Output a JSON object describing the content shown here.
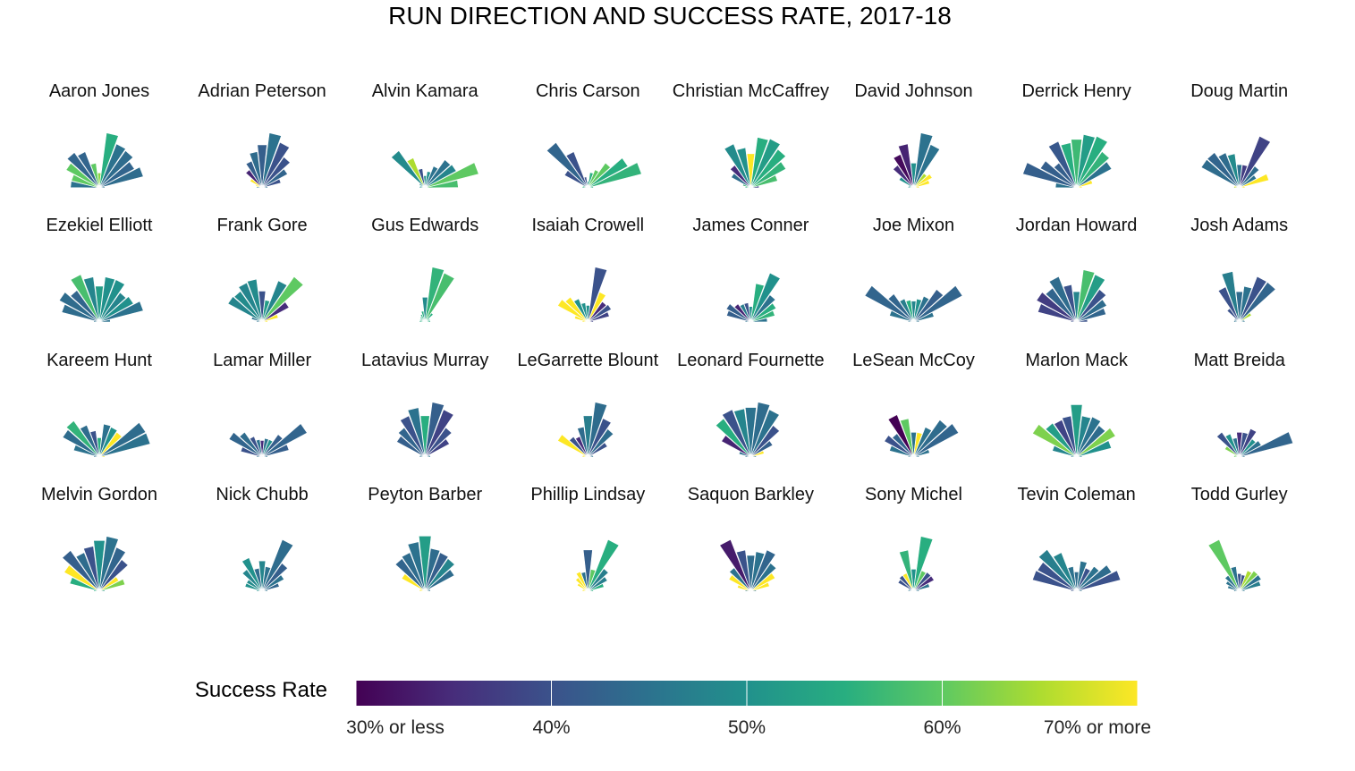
{
  "chart_data": {
    "type": "polar-bar-small-multiples",
    "title": "RUN DIRECTION AND SUCCESS RATE, 2017-18",
    "directions": 13,
    "direction_range_degrees": [
      -90,
      90
    ],
    "value_note": "bar length = relative share of runs in that direction; color = success rate",
    "players": [
      {
        "name": "Aaron Jones",
        "values": [
          0.52,
          0.52,
          0.68,
          0.78,
          0.7,
          0.45,
          0.27,
          1.0,
          0.85,
          0.82,
          0.72,
          0.82,
          0.1
        ],
        "rates": [
          45,
          60,
          60,
          43,
          43,
          60,
          63,
          55,
          45,
          44,
          43,
          44,
          45
        ]
      },
      {
        "name": "Adrian Peterson",
        "values": [
          0.1,
          0.12,
          0.25,
          0.4,
          0.52,
          0.66,
          0.78,
          1.0,
          0.88,
          0.68,
          0.52,
          0.35,
          0.1
        ],
        "rates": [
          45,
          72,
          72,
          34,
          42,
          44,
          42,
          45,
          40,
          40,
          43,
          40,
          45
        ]
      },
      {
        "name": "Alvin Kamara",
        "values": [
          0.1,
          0.1,
          0.12,
          0.82,
          0.58,
          0.35,
          0.22,
          0.3,
          0.42,
          0.62,
          0.64,
          1.0,
          0.6
        ],
        "rates": [
          50,
          50,
          50,
          49,
          65,
          40,
          50,
          50,
          45,
          45,
          48,
          60,
          58
        ]
      },
      {
        "name": "Chris Carson",
        "values": [
          0.1,
          0.1,
          0.48,
          1.0,
          0.7,
          0.2,
          0.12,
          0.28,
          0.35,
          0.55,
          0.82,
          1.0,
          0.1
        ],
        "rates": [
          55,
          55,
          40,
          43,
          40,
          40,
          50,
          55,
          60,
          60,
          55,
          56,
          55
        ]
      },
      {
        "name": "Christian McCaffrey",
        "values": [
          0.1,
          0.15,
          0.4,
          0.5,
          0.85,
          0.73,
          0.62,
          0.92,
          0.95,
          0.85,
          0.72,
          0.5,
          0.15
        ],
        "rates": [
          55,
          57,
          44,
          35,
          49,
          50,
          72,
          55,
          52,
          55,
          56,
          58,
          38
        ]
      },
      {
        "name": "David Johnson",
        "values": [
          0.1,
          0.1,
          0.3,
          0.5,
          0.65,
          0.8,
          0.45,
          1.0,
          0.84,
          0.32,
          0.38,
          0.3,
          0.1
        ],
        "rates": [
          50,
          50,
          50,
          35,
          31,
          34,
          50,
          45,
          45,
          65,
          72,
          72,
          72
        ]
      },
      {
        "name": "Derrick Henry",
        "values": [
          0.38,
          1.0,
          0.74,
          0.55,
          0.9,
          0.82,
          0.88,
          0.97,
          1.0,
          0.8,
          0.72,
          0.3,
          0.1
        ],
        "rates": [
          45,
          42,
          42,
          42,
          41,
          55,
          57,
          52,
          55,
          56,
          45,
          72,
          72
        ]
      },
      {
        "name": "Doug Martin",
        "values": [
          0.1,
          0.1,
          0.78,
          0.78,
          0.68,
          0.62,
          0.42,
          0.42,
          1.0,
          0.48,
          0.35,
          0.55,
          0.1
        ],
        "rates": [
          65,
          72,
          44,
          43,
          44,
          49,
          45,
          37,
          38,
          44,
          45,
          72,
          72
        ]
      },
      {
        "name": "Ezekiel Elliott",
        "values": [
          0.1,
          0.7,
          0.82,
          0.7,
          0.92,
          0.82,
          0.65,
          0.82,
          0.82,
          0.65,
          0.7,
          0.82,
          0.2
        ],
        "rates": [
          45,
          44,
          44,
          43,
          58,
          48,
          52,
          50,
          50,
          48,
          50,
          45,
          45
        ]
      },
      {
        "name": "Frank Gore",
        "values": [
          0.1,
          0.2,
          0.7,
          0.68,
          0.76,
          0.78,
          0.56,
          0.4,
          0.8,
          1.0,
          0.55,
          0.3,
          0.1
        ],
        "rates": [
          45,
          45,
          48,
          49,
          48,
          49,
          40,
          52,
          48,
          60,
          35,
          72,
          72
        ]
      },
      {
        "name": "Gus Edwards",
        "values": [
          0.1,
          0.1,
          0.1,
          0.12,
          0.15,
          0.2,
          0.45,
          1.0,
          0.95,
          0.2,
          0.1,
          0.1,
          0.1
        ],
        "rates": [
          55,
          55,
          55,
          55,
          55,
          55,
          49,
          56,
          58,
          55,
          55,
          55,
          55
        ]
      },
      {
        "name": "Isaiah Crowell",
        "values": [
          0.1,
          0.25,
          0.62,
          0.55,
          0.45,
          0.35,
          0.3,
          1.0,
          0.58,
          0.45,
          0.48,
          0.4,
          0.1
        ],
        "rates": [
          72,
          72,
          72,
          74,
          50,
          50,
          50,
          40,
          72,
          35,
          40,
          38,
          38
        ]
      },
      {
        "name": "James Conner",
        "values": [
          0.1,
          0.45,
          0.5,
          0.4,
          0.35,
          0.35,
          0.28,
          0.7,
          0.95,
          0.6,
          0.52,
          0.45,
          0.3
        ],
        "rates": [
          45,
          42,
          42,
          34,
          47,
          40,
          50,
          55,
          50,
          45,
          55,
          56,
          45
        ]
      },
      {
        "name": "Joe Mixon",
        "values": [
          0.1,
          0.45,
          1.0,
          0.62,
          0.45,
          0.4,
          0.38,
          0.42,
          0.5,
          0.72,
          1.0,
          0.38,
          0.1
        ],
        "rates": [
          45,
          45,
          43,
          43,
          47,
          55,
          48,
          50,
          45,
          42,
          43,
          45,
          45
        ]
      },
      {
        "name": "Jordan Howard",
        "values": [
          0.1,
          0.72,
          0.82,
          0.75,
          0.88,
          0.68,
          0.55,
          0.95,
          0.92,
          0.72,
          0.62,
          0.55,
          0.2
        ],
        "rates": [
          40,
          38,
          37,
          43,
          44,
          40,
          48,
          58,
          52,
          40,
          44,
          43,
          40
        ]
      },
      {
        "name": "Josh Adams",
        "values": [
          0.1,
          0.1,
          0.1,
          0.3,
          0.68,
          0.92,
          0.55,
          0.65,
          0.88,
          0.88,
          0.25,
          0.1,
          0.1
        ],
        "rates": [
          45,
          45,
          45,
          40,
          40,
          47,
          44,
          45,
          40,
          43,
          65,
          45,
          45
        ]
      },
      {
        "name": "Kareem Hunt",
        "values": [
          0.1,
          0.48,
          0.75,
          0.8,
          0.62,
          0.48,
          0.35,
          0.6,
          0.58,
          0.55,
          0.95,
          0.95,
          0.1
        ],
        "rates": [
          45,
          45,
          44,
          56,
          44,
          40,
          55,
          45,
          50,
          72,
          44,
          45,
          72
        ]
      },
      {
        "name": "Lamar Miller",
        "values": [
          0.1,
          0.4,
          0.68,
          0.55,
          0.4,
          0.32,
          0.3,
          0.34,
          0.34,
          0.5,
          0.92,
          0.5,
          0.1
        ],
        "rates": [
          45,
          40,
          43,
          44,
          40,
          45,
          35,
          45,
          50,
          42,
          43,
          42,
          45
        ]
      },
      {
        "name": "Latavius Murray",
        "values": [
          0.1,
          0.1,
          0.58,
          0.65,
          0.8,
          0.9,
          0.75,
          1.0,
          0.92,
          0.65,
          0.5,
          0.1,
          0.1
        ],
        "rates": [
          45,
          45,
          42,
          43,
          40,
          45,
          55,
          42,
          38,
          40,
          38,
          45,
          45
        ]
      },
      {
        "name": "LeGarrette Blount",
        "values": [
          0.1,
          0.1,
          0.62,
          0.45,
          0.4,
          0.55,
          0.75,
          1.0,
          0.75,
          0.62,
          0.4,
          0.1,
          0.1
        ],
        "rates": [
          72,
          72,
          72,
          40,
          35,
          44,
          47,
          44,
          40,
          44,
          40,
          45,
          45
        ]
      },
      {
        "name": "Leonard Fournette",
        "values": [
          0.1,
          0.22,
          0.6,
          0.85,
          0.92,
          0.88,
          0.9,
          1.0,
          0.92,
          0.7,
          0.45,
          0.25,
          0.1
        ],
        "rates": [
          45,
          45,
          34,
          55,
          40,
          48,
          45,
          44,
          45,
          40,
          42,
          72,
          45
        ]
      },
      {
        "name": "LeSean McCoy",
        "values": [
          0.1,
          0.45,
          0.6,
          0.52,
          0.82,
          0.7,
          0.45,
          0.45,
          0.58,
          0.82,
          0.92,
          0.3,
          0.1
        ],
        "rates": [
          45,
          45,
          40,
          43,
          30,
          60,
          45,
          72,
          45,
          44,
          43,
          45,
          45
        ]
      },
      {
        "name": "Marlon Mack",
        "values": [
          0.1,
          0.45,
          0.9,
          0.75,
          0.72,
          0.75,
          0.95,
          0.75,
          0.78,
          0.7,
          0.8,
          0.65,
          0.1
        ],
        "rates": [
          48,
          48,
          62,
          52,
          38,
          40,
          52,
          48,
          45,
          44,
          62,
          50,
          48
        ]
      },
      {
        "name": "Matt Breida",
        "values": [
          0.1,
          0.1,
          0.3,
          0.55,
          0.45,
          0.35,
          0.45,
          0.45,
          0.55,
          0.4,
          0.45,
          1.0,
          0.1
        ],
        "rates": [
          60,
          62,
          62,
          40,
          50,
          45,
          35,
          40,
          38,
          50,
          45,
          43,
          45
        ]
      },
      {
        "name": "Melvin Gordon",
        "values": [
          0.1,
          0.55,
          0.72,
          0.9,
          0.75,
          0.82,
          0.92,
          1.0,
          0.85,
          0.7,
          0.4,
          0.48,
          0.1
        ],
        "rates": [
          55,
          55,
          72,
          42,
          44,
          40,
          50,
          45,
          43,
          40,
          72,
          62,
          50
        ]
      },
      {
        "name": "Nick Chubb",
        "values": [
          0.1,
          0.32,
          0.32,
          0.48,
          0.65,
          0.42,
          0.55,
          0.45,
          1.0,
          0.62,
          0.45,
          0.32,
          0.1
        ],
        "rates": [
          50,
          50,
          49,
          48,
          50,
          44,
          48,
          45,
          44,
          42,
          45,
          43,
          45
        ]
      },
      {
        "name": "Peyton Barber",
        "values": [
          0.1,
          0.1,
          0.48,
          0.72,
          0.75,
          0.9,
          1.0,
          0.78,
          0.75,
          0.72,
          0.6,
          0.1,
          0.1
        ],
        "rates": [
          72,
          72,
          72,
          43,
          44,
          45,
          52,
          44,
          42,
          48,
          44,
          45,
          45
        ]
      },
      {
        "name": "Phillip Lindsay",
        "values": [
          0.1,
          0.1,
          0.22,
          0.3,
          0.38,
          0.35,
          0.75,
          0.4,
          1.0,
          0.5,
          0.4,
          0.3,
          0.1
        ],
        "rates": [
          72,
          72,
          72,
          72,
          72,
          45,
          42,
          60,
          55,
          47,
          47,
          55,
          55
        ]
      },
      {
        "name": "Saquon Barkley",
        "values": [
          0.1,
          0.25,
          0.45,
          0.52,
          1.0,
          0.75,
          0.65,
          0.72,
          0.8,
          0.62,
          0.5,
          0.35,
          0.1
        ],
        "rates": [
          45,
          72,
          72,
          45,
          33,
          40,
          44,
          45,
          43,
          45,
          72,
          72,
          45
        ]
      },
      {
        "name": "Sony Michel",
        "values": [
          0.1,
          0.1,
          0.32,
          0.35,
          0.35,
          0.75,
          0.4,
          1.0,
          0.4,
          0.42,
          0.42,
          0.3,
          0.1
        ],
        "rates": [
          45,
          45,
          40,
          40,
          72,
          56,
          50,
          55,
          60,
          40,
          35,
          45,
          45
        ]
      },
      {
        "name": "Tevin Coleman",
        "values": [
          0.1,
          0.82,
          0.8,
          0.92,
          0.75,
          0.45,
          0.35,
          0.55,
          0.45,
          0.55,
          0.72,
          0.82,
          0.1
        ],
        "rates": [
          40,
          40,
          40,
          47,
          48,
          45,
          44,
          45,
          40,
          45,
          44,
          40,
          45
        ]
      },
      {
        "name": "Todd Gurley",
        "values": [
          0.1,
          0.22,
          0.28,
          0.35,
          1.0,
          0.45,
          0.32,
          0.3,
          0.4,
          0.45,
          0.45,
          0.4,
          0.1
        ],
        "rates": [
          45,
          45,
          45,
          45,
          60,
          45,
          40,
          40,
          65,
          62,
          45,
          47,
          45
        ]
      }
    ],
    "legend": {
      "title": "Success Rate",
      "min": 30,
      "max": 70,
      "ticks": [
        {
          "value": 30,
          "label": "30% or less"
        },
        {
          "value": 40,
          "label": "40%"
        },
        {
          "value": 50,
          "label": "50%"
        },
        {
          "value": 60,
          "label": "60%"
        },
        {
          "value": 70,
          "label": "70% or more"
        }
      ],
      "colormap": [
        "#440154",
        "#472d7b",
        "#3b528b",
        "#2c728e",
        "#21918c",
        "#28ae80",
        "#5ec962",
        "#addc30",
        "#fde725"
      ]
    }
  }
}
